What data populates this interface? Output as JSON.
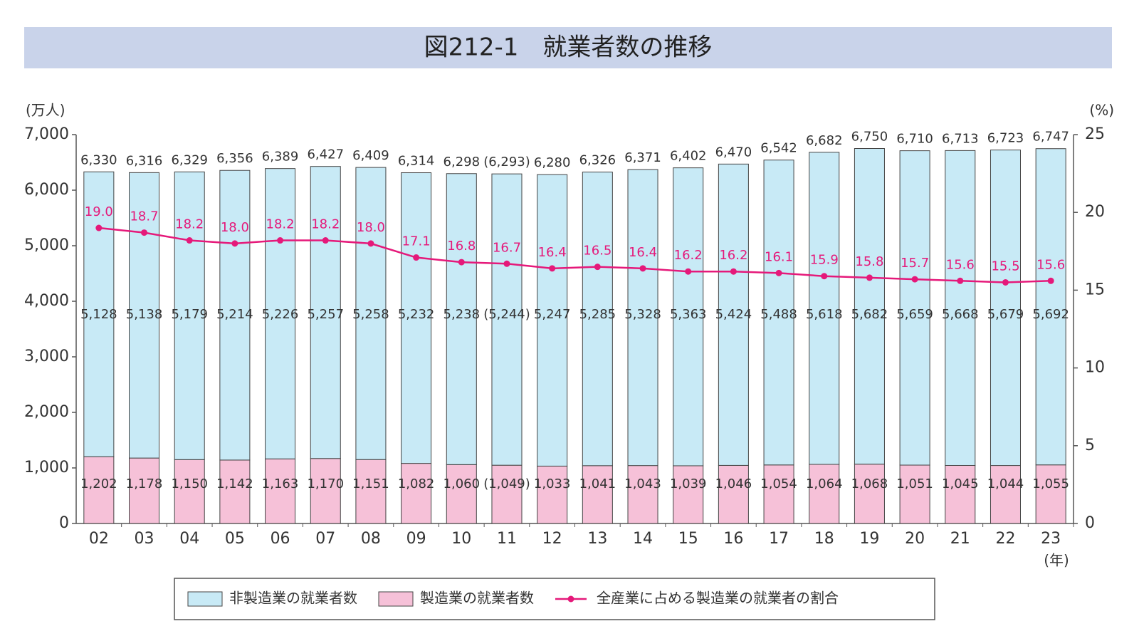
{
  "chart_data": {
    "type": "bar",
    "stacked": true,
    "title": "図212-1　就業者数の推移",
    "y_label": "(万人)",
    "y2_label": "(%)",
    "x_label": "(年)",
    "categories": [
      "02",
      "03",
      "04",
      "05",
      "06",
      "07",
      "08",
      "09",
      "10",
      "11",
      "12",
      "13",
      "14",
      "15",
      "16",
      "17",
      "18",
      "19",
      "20",
      "21",
      "22",
      "23"
    ],
    "ylim": [
      0,
      7000
    ],
    "yticks": [
      0,
      {
        "value": 1000,
        "label": "1,000"
      },
      {
        "value": 2000,
        "label": "2,000"
      },
      {
        "value": 3000,
        "label": "3,000"
      },
      {
        "value": 4000,
        "label": "4,000"
      },
      {
        "value": 5000,
        "label": "5,000"
      },
      {
        "value": 6000,
        "label": "6,000"
      },
      {
        "value": 7000,
        "label": "7,000"
      }
    ],
    "y2lim": [
      0,
      25
    ],
    "y2ticks": [
      0,
      5,
      10,
      15,
      20,
      25
    ],
    "grid": false,
    "legend": "bottom",
    "totals": {
      "values": [
        6330,
        6316,
        6329,
        6356,
        6389,
        6427,
        6409,
        6314,
        6298,
        6293,
        6280,
        6326,
        6371,
        6402,
        6470,
        6542,
        6682,
        6750,
        6710,
        6713,
        6723,
        6747
      ],
      "value_labels": [
        "6,330",
        "6,316",
        "6,329",
        "6,356",
        "6,389",
        "6,427",
        "6,409",
        "6,314",
        "6,298",
        "(6,293)",
        "6,280",
        "6,326",
        "6,371",
        "6,402",
        "6,470",
        "6,542",
        "6,682",
        "6,750",
        "6,710",
        "6,713",
        "6,723",
        "6,747"
      ]
    },
    "series": [
      {
        "name": "製造業の就業者数",
        "color": "#f6c1d8",
        "legend_order": 1,
        "values": [
          1202,
          1178,
          1150,
          1142,
          1163,
          1170,
          1151,
          1082,
          1060,
          1049,
          1033,
          1041,
          1043,
          1039,
          1046,
          1054,
          1064,
          1068,
          1051,
          1045,
          1044,
          1055
        ],
        "value_labels": [
          "1,202",
          "1,178",
          "1,150",
          "1,142",
          "1,163",
          "1,170",
          "1,151",
          "1,082",
          "1,060",
          "(1,049)",
          "1,033",
          "1,041",
          "1,043",
          "1,039",
          "1,046",
          "1,054",
          "1,064",
          "1,068",
          "1,051",
          "1,045",
          "1,044",
          "1,055"
        ]
      },
      {
        "name": "非製造業の就業者数",
        "color": "#c8eaf6",
        "legend_order": 0,
        "values": [
          5128,
          5138,
          5179,
          5214,
          5226,
          5257,
          5258,
          5232,
          5238,
          5244,
          5247,
          5285,
          5328,
          5363,
          5424,
          5488,
          5618,
          5682,
          5659,
          5668,
          5679,
          5692
        ],
        "value_labels": [
          "5,128",
          "5,138",
          "5,179",
          "5,214",
          "5,226",
          "5,257",
          "5,258",
          "5,232",
          "5,238",
          "(5,244)",
          "5,247",
          "5,285",
          "5,328",
          "5,363",
          "5,424",
          "5,488",
          "5,618",
          "5,682",
          "5,659",
          "5,668",
          "5,679",
          "5,692"
        ]
      },
      {
        "name": "全産業に占める製造業の就業者の割合",
        "color": "#e5197a",
        "axis": "y2",
        "type": "line",
        "legend_order": 2,
        "values": [
          19.0,
          18.7,
          18.2,
          18.0,
          18.2,
          18.2,
          18.0,
          17.1,
          16.8,
          16.7,
          16.4,
          16.5,
          16.4,
          16.2,
          16.2,
          16.1,
          15.9,
          15.8,
          15.7,
          15.6,
          15.5,
          15.6
        ],
        "value_labels": [
          "19.0",
          "18.7",
          "18.2",
          "18.0",
          "18.2",
          "18.2",
          "18.0",
          "17.1",
          "16.8",
          "16.7",
          "16.4",
          "16.5",
          "16.4",
          "16.2",
          "16.2",
          "16.1",
          "15.9",
          "15.8",
          "15.7",
          "15.6",
          "15.5",
          "15.6"
        ]
      }
    ]
  }
}
